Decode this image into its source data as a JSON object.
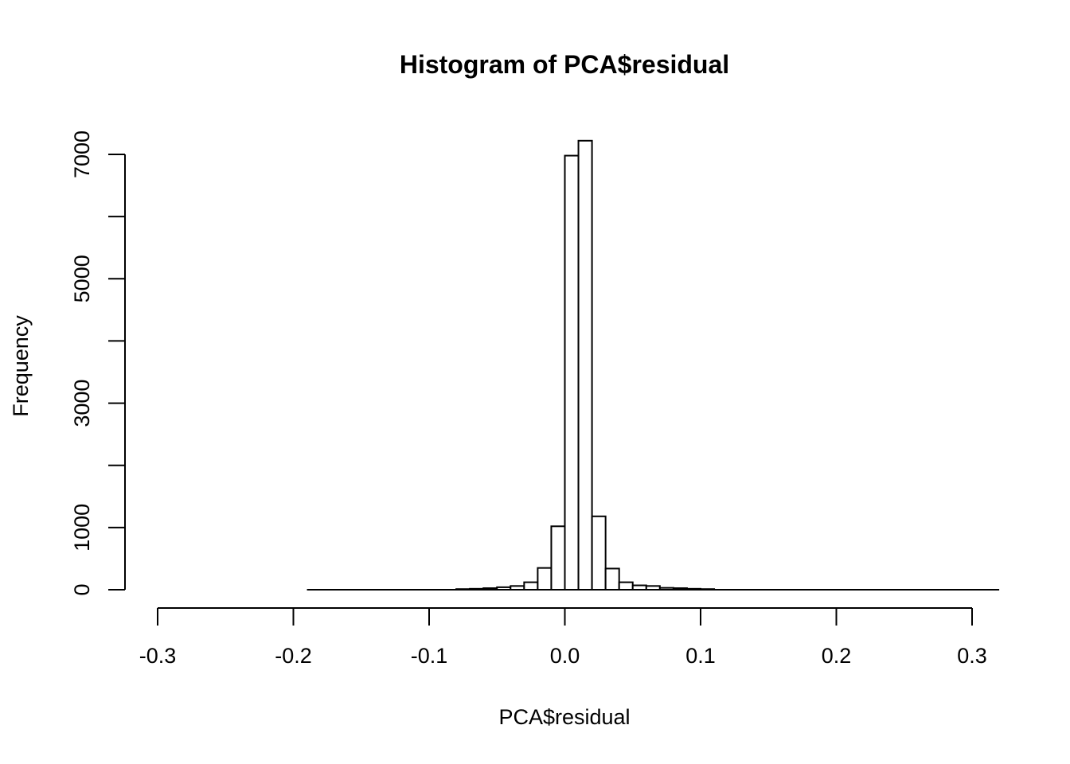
{
  "chart_data": {
    "type": "bar",
    "title": "Histogram of PCA$residual",
    "xlabel": "PCA$residual",
    "ylabel": "Frequency",
    "x_ticks": [
      -0.3,
      -0.2,
      -0.1,
      0.0,
      0.1,
      0.2,
      0.3
    ],
    "x_tick_labels": [
      "-0.3",
      "-0.2",
      "-0.1",
      "0.0",
      "0.1",
      "0.2",
      "0.3"
    ],
    "y_ticks": [
      0,
      1000,
      2000,
      3000,
      4000,
      5000,
      6000,
      7000
    ],
    "y_tick_labels": [
      "0",
      "1000",
      "",
      "3000",
      "",
      "5000",
      "",
      "7000"
    ],
    "xlim": [
      -0.3,
      0.3
    ],
    "ylim": [
      0,
      7000
    ],
    "bin_width": 0.01,
    "bin_start": -0.19,
    "bin_end": 0.32,
    "bins": [
      {
        "x0": -0.08,
        "x1": -0.07,
        "count": 10
      },
      {
        "x0": -0.07,
        "x1": -0.06,
        "count": 15
      },
      {
        "x0": -0.06,
        "x1": -0.05,
        "count": 25
      },
      {
        "x0": -0.05,
        "x1": -0.04,
        "count": 40
      },
      {
        "x0": -0.04,
        "x1": -0.03,
        "count": 60
      },
      {
        "x0": -0.03,
        "x1": -0.02,
        "count": 120
      },
      {
        "x0": -0.02,
        "x1": -0.01,
        "count": 350
      },
      {
        "x0": -0.01,
        "x1": 0.0,
        "count": 1020
      },
      {
        "x0": 0.0,
        "x1": 0.01,
        "count": 6980
      },
      {
        "x0": 0.01,
        "x1": 0.02,
        "count": 7220
      },
      {
        "x0": 0.02,
        "x1": 0.03,
        "count": 1180
      },
      {
        "x0": 0.03,
        "x1": 0.04,
        "count": 340
      },
      {
        "x0": 0.04,
        "x1": 0.05,
        "count": 120
      },
      {
        "x0": 0.05,
        "x1": 0.06,
        "count": 70
      },
      {
        "x0": 0.06,
        "x1": 0.07,
        "count": 60
      },
      {
        "x0": 0.07,
        "x1": 0.08,
        "count": 30
      },
      {
        "x0": 0.08,
        "x1": 0.09,
        "count": 25
      },
      {
        "x0": 0.09,
        "x1": 0.1,
        "count": 15
      },
      {
        "x0": 0.1,
        "x1": 0.11,
        "count": 10
      }
    ]
  }
}
